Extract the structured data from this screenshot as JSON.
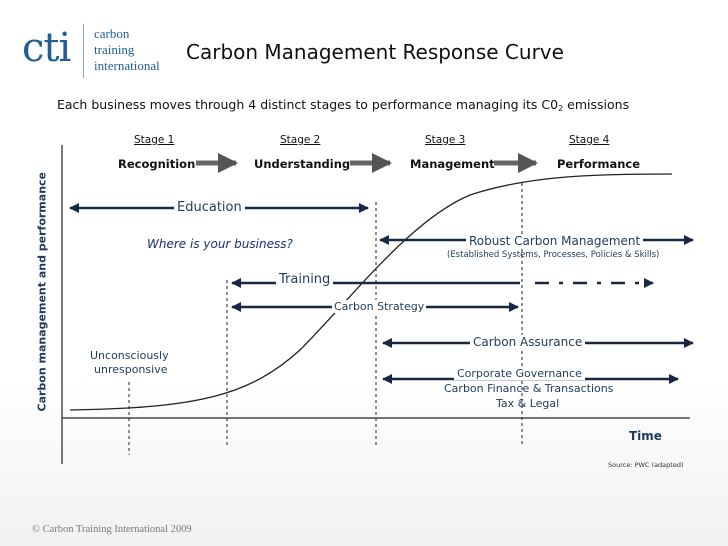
{
  "logo": {
    "mark": "cti",
    "line1": "carbon",
    "line2": "training",
    "line3": "international"
  },
  "title": "Carbon Management Response Curve",
  "subtitle_main": "Each business moves through 4 distinct stages to performance managing its C0",
  "subtitle_sub": "2",
  "subtitle_end": " emissions",
  "stages": [
    {
      "number": "Stage 1",
      "name": "Recognition"
    },
    {
      "number": "Stage 2",
      "name": "Understanding"
    },
    {
      "number": "Stage 3",
      "name": "Management"
    },
    {
      "number": "Stage 4",
      "name": "Performance"
    }
  ],
  "y_axis_label": "Carbon management and performance",
  "x_axis_label": "Time",
  "labels": {
    "education": "Education",
    "where": "Where is your business?",
    "robust": "Robust Carbon Management",
    "robust_detail": "(Established Systems, Processes, Policies & Skills)",
    "training": "Training",
    "carbon_strategy": "Carbon Strategy",
    "carbon_assurance": "Carbon Assurance",
    "unconscious_1": "Unconsciously",
    "unconscious_2": "unresponsive",
    "gov_1": "Corporate Governance",
    "gov_2": "Carbon Finance & Transactions",
    "gov_3": "Tax & Legal"
  },
  "source": "Source: PWC (adapted)",
  "footer": "© Carbon Training International 2009",
  "colors": {
    "navy": "#1a2744",
    "brand_blue": "#1f5f95",
    "text_blue": "#1f3b5c"
  }
}
